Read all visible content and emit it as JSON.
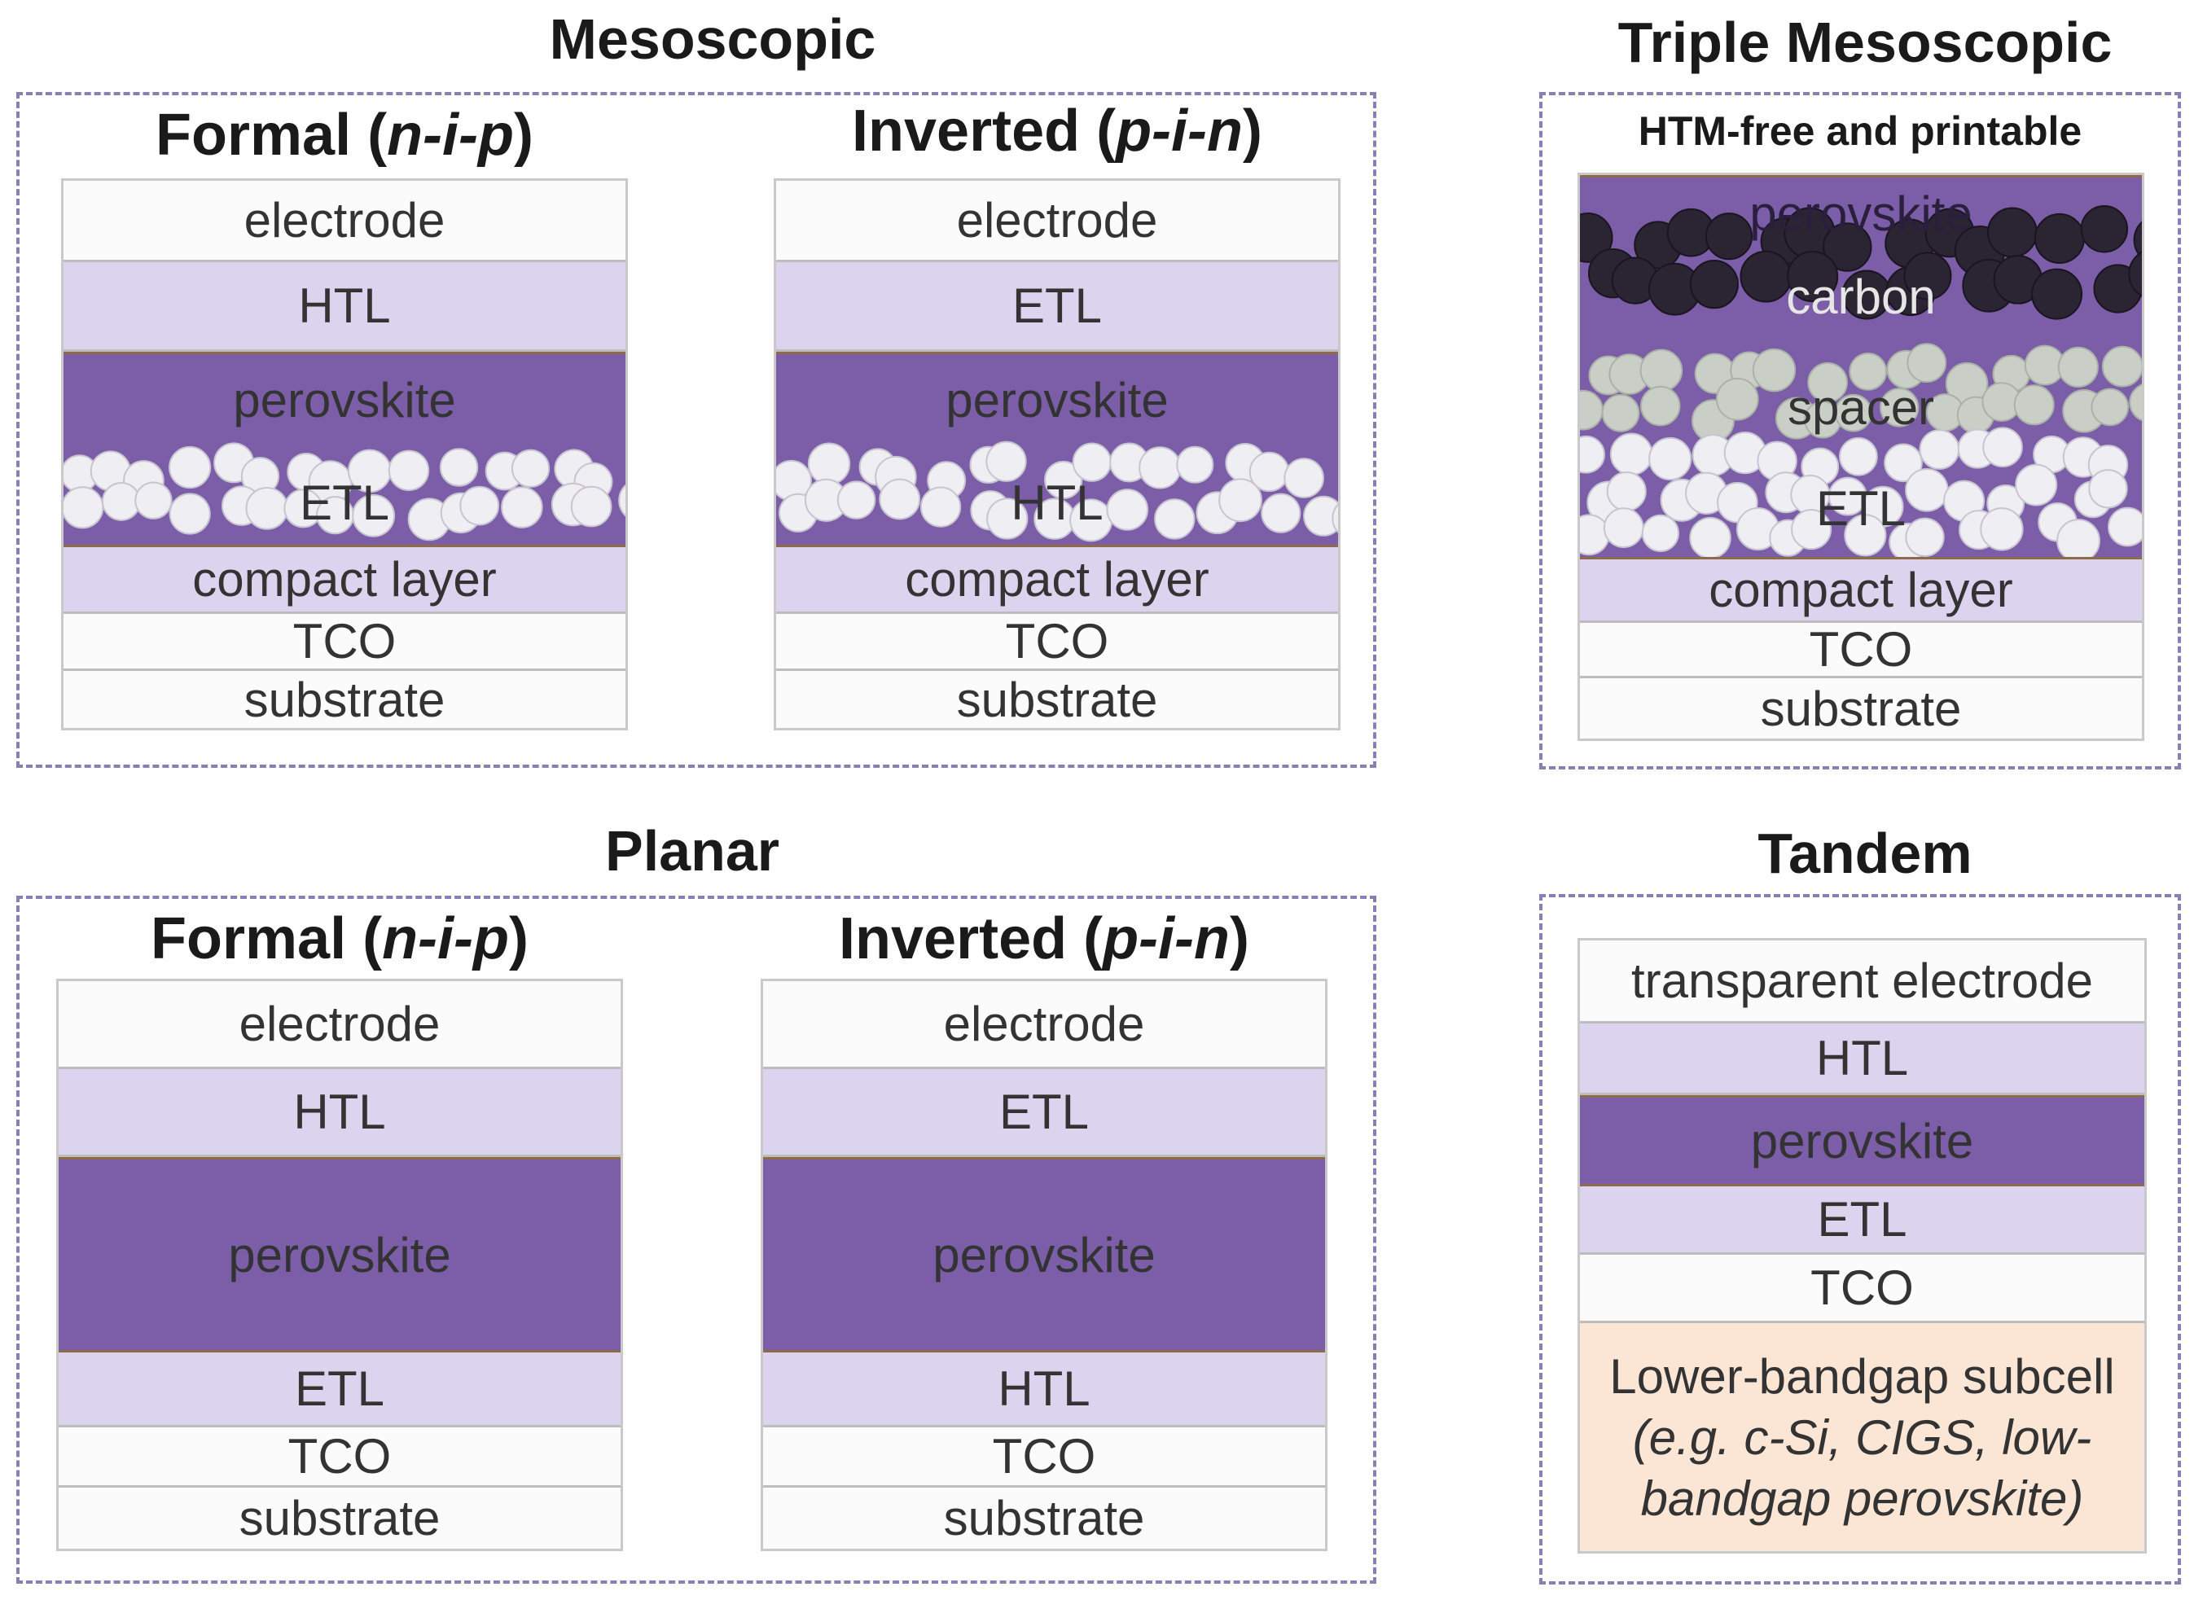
{
  "mesoscopic": {
    "title": "Mesoscopic",
    "formal": {
      "title_main": "Formal (",
      "title_italic": "n-i-p",
      "title_close": ")",
      "layers": [
        "electrode",
        "HTL",
        "perovskite",
        "ETL",
        "compact layer",
        "TCO",
        "substrate"
      ]
    },
    "inverted": {
      "title_main": "Inverted (",
      "title_italic": "p-i-n",
      "title_close": ")",
      "layers": [
        "electrode",
        "ETL",
        "perovskite",
        "HTL",
        "compact layer",
        "TCO",
        "substrate"
      ]
    }
  },
  "triple": {
    "title": "Triple Mesoscopic",
    "subtitle": "HTM-free and printable",
    "layers": [
      "perovskite",
      "carbon",
      "spacer",
      "ETL",
      "compact layer",
      "TCO",
      "substrate"
    ]
  },
  "planar": {
    "title": "Planar",
    "formal": {
      "title_main": "Formal (",
      "title_italic": "n-i-p",
      "title_close": ")",
      "layers": [
        "electrode",
        "HTL",
        "perovskite",
        "ETL",
        "TCO",
        "substrate"
      ]
    },
    "inverted": {
      "title_main": "Inverted (",
      "title_italic": "p-i-n",
      "title_close": ")",
      "layers": [
        "electrode",
        "ETL",
        "perovskite",
        "HTL",
        "TCO",
        "substrate"
      ]
    }
  },
  "tandem": {
    "title": "Tandem",
    "layers": [
      "transparent electrode",
      "HTL",
      "perovskite",
      "ETL",
      "TCO"
    ],
    "subcell_line1": "Lower-bandgap subcell",
    "subcell_line2": "(e.g. c-Si, CIGS, low-",
    "subcell_line3": "bandgap perovskite)"
  },
  "colors": {
    "light_layer": "#dcd4ee",
    "perovskite": "#7b5ea7",
    "subcell": "#fbe6d6",
    "frame": "#8a7fb5"
  }
}
